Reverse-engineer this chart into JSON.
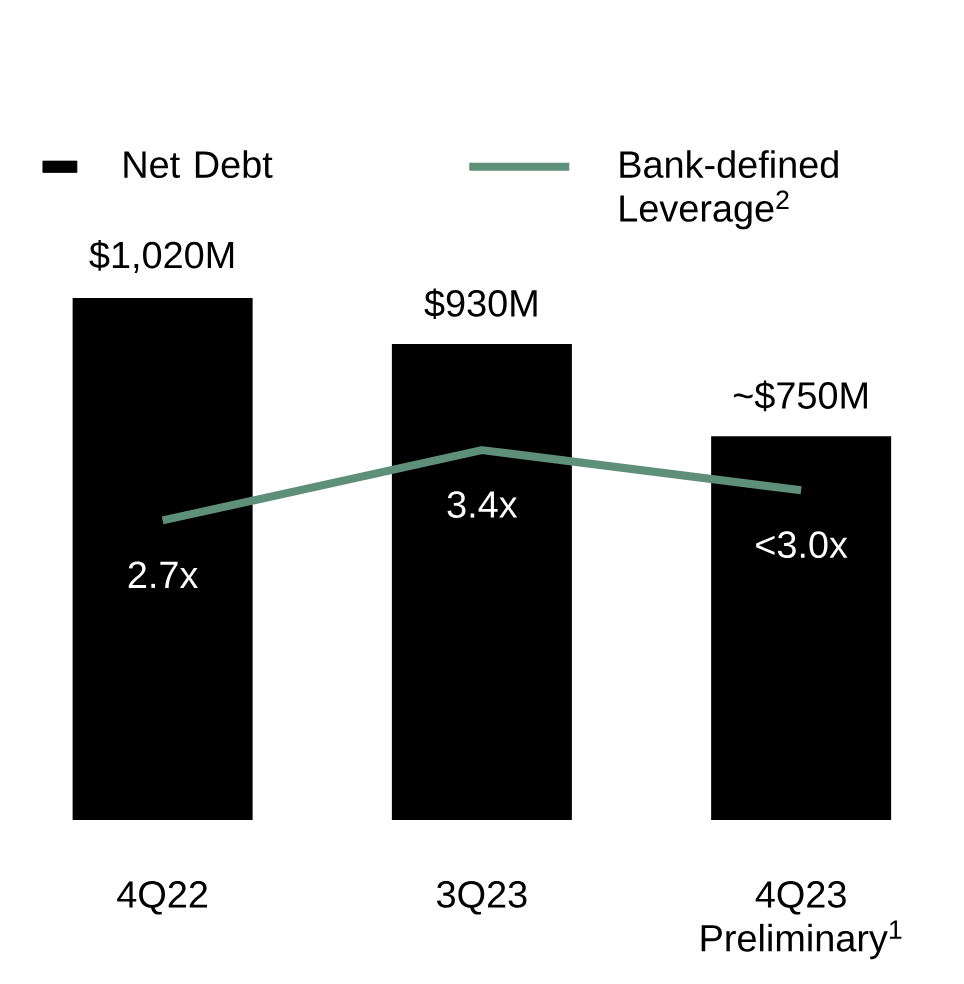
{
  "chart_data": {
    "type": "bar",
    "categories": [
      "4Q22",
      "3Q23",
      "4Q23 Preliminary$^{1}$"
    ],
    "series": [
      {
        "name": "Net Debt",
        "color": "#000000",
        "values": [
          1020,
          930,
          750
        ],
        "value_labels": [
          "$1,020M",
          "$930M",
          "~$750M"
        ]
      },
      {
        "name": "Bank-defined Leverage$^{2}$",
        "type": "line",
        "axis": "y2",
        "color": "#5e8f78",
        "values": [
          2.7,
          3.4,
          3.0
        ],
        "value_labels": [
          "2.7x",
          "3.4x",
          "<3.0x"
        ]
      }
    ],
    "tick_labels": "x",
    "legend": "top",
    "grid": false,
    "marker": "none"
  }
}
